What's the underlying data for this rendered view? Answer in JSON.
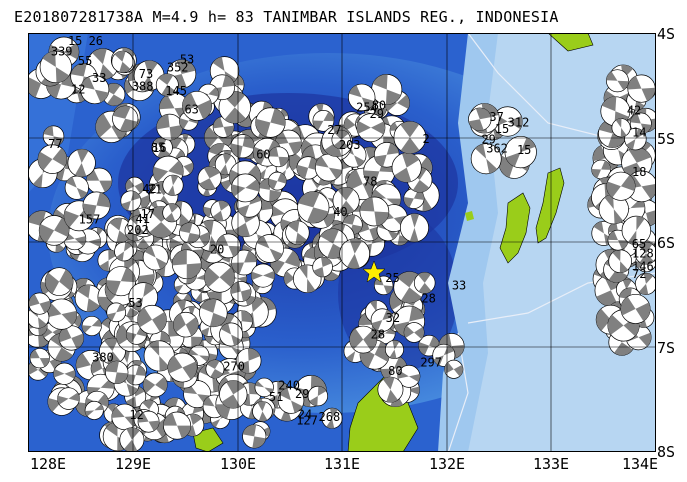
{
  "title": "E201807281738A M=4.9 h= 83 TANIMBAR ISLANDS REG., INDONESIA",
  "lat_labels": [
    "4S",
    "5S",
    "6S",
    "7S",
    "8S"
  ],
  "lon_labels": [
    "128E",
    "129E",
    "130E",
    "131E",
    "132E",
    "133E",
    "134E"
  ],
  "colors": {
    "deep_water": "#1f3fb0",
    "mid_water": "#2f6fd8",
    "shallow_water": "#7fb3ea",
    "shelf": "#b9d8f2",
    "land": "#9acd1a",
    "grid": "#000000",
    "fault": "#e8eef8",
    "beachball_dark": "#808080",
    "beachball_light": "#ffffff",
    "event_marker": "#ffee00"
  },
  "event_marker_icon": "star-icon",
  "event_labels": [
    "17",
    "21",
    "27",
    "14",
    "15",
    "33",
    "25",
    "15",
    "24",
    "12",
    "16",
    "2",
    "72",
    "55",
    "63",
    "32",
    "29",
    "127",
    "41",
    "85",
    "78",
    "65",
    "12",
    "352",
    "297",
    "362",
    "268",
    "270",
    "42",
    "203",
    "146",
    "339",
    "388",
    "28",
    "15",
    "29",
    "380",
    "20",
    "254",
    "128",
    "77",
    "53",
    "28",
    "312",
    "240",
    "53",
    "40",
    "80",
    "18",
    "157",
    "145",
    "33",
    "37",
    "51",
    "202",
    "60",
    "29",
    "42",
    "26",
    "73",
    "80"
  ]
}
